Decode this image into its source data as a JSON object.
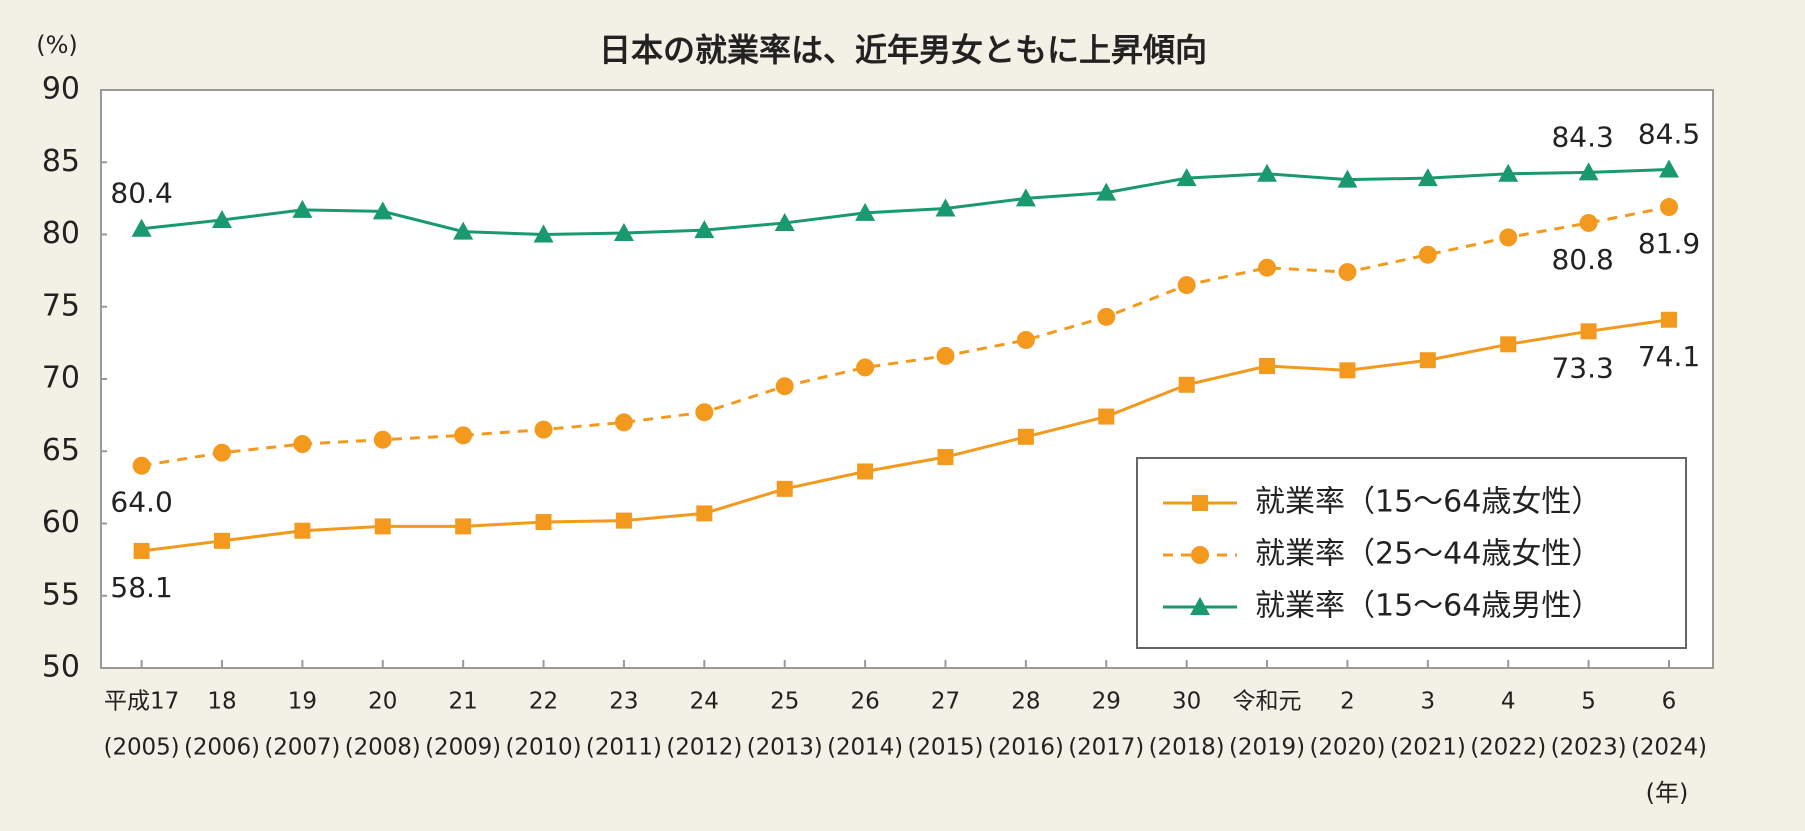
{
  "chart_data": {
    "type": "line",
    "title": "日本の就業率は、近年男女ともに上昇傾向",
    "y_label": "(%)",
    "x_label": "(年)",
    "categories": [
      [
        "平成17",
        "(2005)"
      ],
      [
        "18",
        "(2006)"
      ],
      [
        "19",
        "(2007)"
      ],
      [
        "20",
        "(2008)"
      ],
      [
        "21",
        "(2009)"
      ],
      [
        "22",
        "(2010)"
      ],
      [
        "23",
        "(2011)"
      ],
      [
        "24",
        "(2012)"
      ],
      [
        "25",
        "(2013)"
      ],
      [
        "26",
        "(2014)"
      ],
      [
        "27",
        "(2015)"
      ],
      [
        "28",
        "(2016)"
      ],
      [
        "29",
        "(2017)"
      ],
      [
        "30",
        "(2018)"
      ],
      [
        "令和元",
        "(2019)"
      ],
      [
        "2",
        "(2020)"
      ],
      [
        "3",
        "(2021)"
      ],
      [
        "4",
        "(2022)"
      ],
      [
        "5",
        "(2023)"
      ],
      [
        "6",
        "(2024)"
      ]
    ],
    "series": [
      {
        "name": "就業率（15～64歳女性）",
        "color": "#f39a1e",
        "marker": "square",
        "dashed": false,
        "label_side": "below",
        "values": [
          58.1,
          58.8,
          59.5,
          59.8,
          59.8,
          60.1,
          60.2,
          60.7,
          62.4,
          63.6,
          64.6,
          66.0,
          67.4,
          69.6,
          70.9,
          70.6,
          71.3,
          72.4,
          73.3,
          74.1
        ],
        "value_labels": [
          "58.1",
          null,
          null,
          null,
          null,
          null,
          null,
          null,
          null,
          null,
          null,
          null,
          null,
          null,
          null,
          null,
          null,
          null,
          "73.3",
          "74.1"
        ]
      },
      {
        "name": "就業率（25～44歳女性）",
        "color": "#f39a1e",
        "marker": "circle",
        "dashed": true,
        "label_side": "below",
        "values": [
          64.0,
          64.9,
          65.5,
          65.8,
          66.1,
          66.5,
          67.0,
          67.7,
          69.5,
          70.8,
          71.6,
          72.7,
          74.3,
          76.5,
          77.7,
          77.4,
          78.6,
          79.8,
          80.8,
          81.9
        ],
        "value_labels": [
          "64.0",
          null,
          null,
          null,
          null,
          null,
          null,
          null,
          null,
          null,
          null,
          null,
          null,
          null,
          null,
          null,
          null,
          null,
          "80.8",
          "81.9"
        ]
      },
      {
        "name": "就業率（15～64歳男性）",
        "color": "#1a9a6c",
        "marker": "triangle",
        "dashed": false,
        "label_side": "above",
        "values": [
          80.4,
          81.0,
          81.7,
          81.6,
          80.2,
          80.0,
          80.1,
          80.3,
          80.8,
          81.5,
          81.8,
          82.5,
          82.9,
          83.9,
          84.2,
          83.8,
          83.9,
          84.2,
          84.3,
          84.5
        ],
        "value_labels": [
          "80.4",
          null,
          null,
          null,
          null,
          null,
          null,
          null,
          null,
          null,
          null,
          null,
          null,
          null,
          null,
          null,
          null,
          null,
          "84.3",
          "84.5"
        ]
      }
    ],
    "ylim": [
      50,
      90
    ],
    "yticks": [
      50,
      55,
      60,
      65,
      70,
      75,
      80,
      85,
      90
    ],
    "legend": "lower-right"
  }
}
